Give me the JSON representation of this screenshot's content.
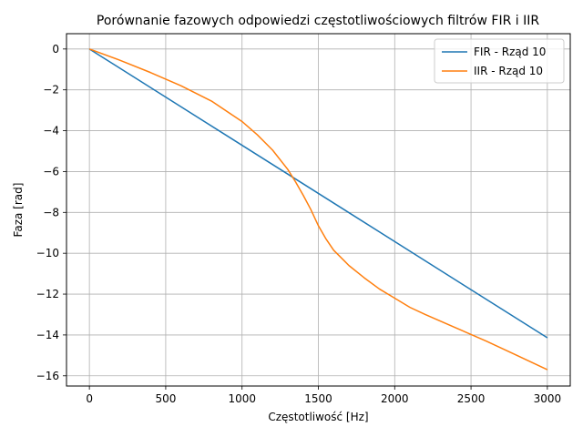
{
  "chart_data": {
    "type": "line",
    "title": "Porównanie fazowych odpowiedzi częstotliwościowych filtrów FIR i IIR",
    "xlabel": "Częstotliwość [Hz]",
    "ylabel": "Faza [rad]",
    "xlim": [
      -150,
      3150
    ],
    "ylim": [
      -16.5,
      0.75
    ],
    "xticks": [
      0,
      500,
      1000,
      1500,
      2000,
      2500,
      3000
    ],
    "yticks": [
      0,
      -2,
      -4,
      -6,
      -8,
      -10,
      -12,
      -14,
      -16
    ],
    "xtick_labels": [
      "0",
      "500",
      "1000",
      "1500",
      "2000",
      "2500",
      "3000"
    ],
    "ytick_labels": [
      "0",
      "−2",
      "−4",
      "−6",
      "−8",
      "−10",
      "−12",
      "−14",
      "−16"
    ],
    "grid": true,
    "legend_position": "top-right",
    "series": [
      {
        "name": "FIR - Rząd 10",
        "color": "#1f77b4",
        "x": [
          0,
          3000
        ],
        "y": [
          0,
          -14.14
        ]
      },
      {
        "name": "IIR - Rząd 10",
        "color": "#ff7f0e",
        "x": [
          0,
          200,
          400,
          600,
          800,
          1000,
          1100,
          1200,
          1300,
          1350,
          1400,
          1450,
          1500,
          1550,
          1600,
          1700,
          1800,
          1900,
          2000,
          2100,
          2200,
          2400,
          2600,
          2800,
          3000
        ],
        "y": [
          0,
          -0.55,
          -1.15,
          -1.8,
          -2.55,
          -3.55,
          -4.2,
          -4.95,
          -5.9,
          -6.5,
          -7.15,
          -7.85,
          -8.65,
          -9.3,
          -9.85,
          -10.6,
          -11.2,
          -11.75,
          -12.2,
          -12.65,
          -13.0,
          -13.65,
          -14.3,
          -15.0,
          -15.7
        ]
      }
    ]
  }
}
